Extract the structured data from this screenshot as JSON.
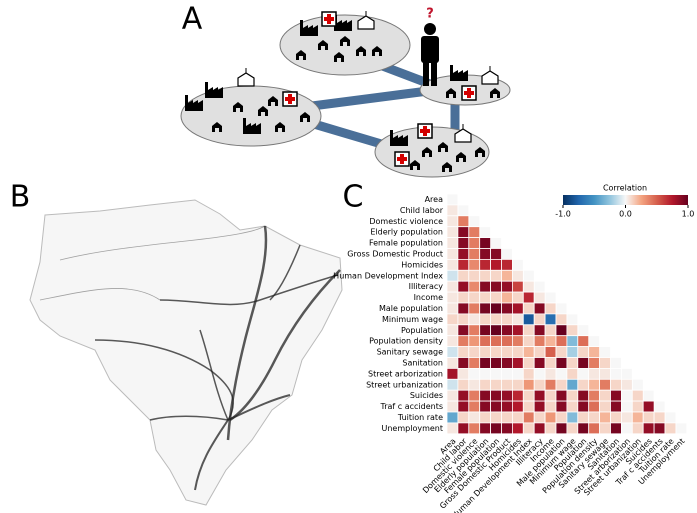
{
  "panel_labels": [
    "A",
    "B",
    "C"
  ],
  "question_mark": "?",
  "chart_data": {
    "type": "heatmap",
    "labels": [
      "Area",
      "Child labor",
      "Domestic violence",
      "Elderly population",
      "Female population",
      "Gross Domestic Product",
      "Homicides",
      "Human Development Index",
      "Illiteracy",
      "Income",
      "Male population",
      "Minimum wage",
      "Population",
      "Population density",
      "Sanitary sewage",
      "Sanitation",
      "Street arborization",
      "Street urbanization",
      "Suicides",
      "Traf c accidents",
      "Tuition rate",
      "Unemployment"
    ],
    "values": [
      [],
      [
        0.05
      ],
      [
        0.05,
        0.4
      ],
      [
        0.05,
        0.9,
        0.4
      ],
      [
        0.05,
        0.9,
        0.4,
        0.95
      ],
      [
        0.05,
        0.85,
        0.4,
        0.9,
        0.9
      ],
      [
        0.05,
        0.7,
        0.35,
        0.7,
        0.75,
        0.7
      ],
      [
        -0.1,
        0.1,
        0.1,
        0.1,
        0.1,
        0.2,
        0.05
      ],
      [
        0.05,
        0.85,
        0.35,
        0.9,
        0.9,
        0.85,
        0.6,
        0.05
      ],
      [
        0.05,
        0.1,
        0.1,
        0.1,
        0.1,
        0.2,
        0.1,
        0.7,
        0.05
      ],
      [
        0.05,
        0.9,
        0.4,
        0.95,
        1.0,
        0.9,
        0.8,
        0.1,
        0.9,
        0.1
      ],
      [
        0.1,
        0.1,
        0.05,
        0.1,
        0.1,
        0.1,
        0.05,
        -0.8,
        0.1,
        -0.7,
        0.1
      ],
      [
        0.05,
        0.9,
        0.4,
        0.95,
        1.0,
        0.9,
        0.8,
        0.1,
        0.9,
        0.1,
        1.0,
        0.1
      ],
      [
        0.05,
        0.4,
        0.3,
        0.45,
        0.45,
        0.45,
        0.4,
        0.1,
        0.4,
        0.2,
        0.45,
        -0.3,
        0.45
      ],
      [
        -0.1,
        0.1,
        0.1,
        0.1,
        0.1,
        0.1,
        0.1,
        0.2,
        0.1,
        0.5,
        0.1,
        -0.2,
        0.1,
        0.2
      ],
      [
        0.05,
        0.9,
        0.4,
        0.95,
        0.95,
        0.9,
        0.8,
        0.1,
        0.9,
        0.1,
        0.95,
        0.1,
        0.95,
        0.4,
        0.1
      ],
      [
        0.8,
        0.05,
        0.0,
        0.0,
        0.0,
        0.0,
        0.0,
        0.1,
        0.0,
        0.05,
        0.0,
        0.1,
        0.0,
        0.05,
        0.05,
        0.0
      ],
      [
        -0.1,
        0.1,
        0.05,
        0.1,
        0.1,
        0.1,
        0.1,
        0.3,
        0.1,
        0.4,
        0.1,
        -0.4,
        0.1,
        0.2,
        0.4,
        0.1,
        0.05
      ],
      [
        0.05,
        0.85,
        0.4,
        0.9,
        0.9,
        0.85,
        0.7,
        0.1,
        0.85,
        0.1,
        0.9,
        0.1,
        0.9,
        0.4,
        0.1,
        0.9,
        0.0,
        0.1
      ],
      [
        0.05,
        0.85,
        0.4,
        0.9,
        0.9,
        0.85,
        0.75,
        0.1,
        0.85,
        0.1,
        0.9,
        0.1,
        0.9,
        0.45,
        0.1,
        0.9,
        0.0,
        0.1,
        0.85
      ],
      [
        -0.4,
        0.1,
        0.05,
        0.1,
        0.1,
        0.1,
        0.1,
        0.4,
        0.1,
        0.3,
        0.1,
        -0.3,
        0.1,
        0.1,
        0.2,
        0.1,
        0.05,
        0.2,
        0.1,
        0.1
      ],
      [
        0.05,
        0.85,
        0.4,
        0.9,
        0.95,
        0.9,
        0.75,
        0.1,
        0.85,
        0.1,
        0.95,
        0.1,
        0.95,
        0.45,
        0.1,
        0.95,
        0.0,
        0.1,
        0.85,
        0.9,
        0.1
      ]
    ],
    "colorbar": {
      "label": "Correlation",
      "lim": [
        -1,
        1
      ],
      "ticks": [
        {
          "value": -1,
          "label": "-1.0"
        },
        {
          "value": 0,
          "label": "0.0"
        },
        {
          "value": 1,
          "label": "1.0"
        }
      ]
    }
  }
}
